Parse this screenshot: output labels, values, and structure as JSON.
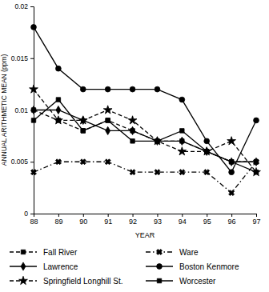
{
  "chart_data": {
    "type": "line",
    "x_label": "YEAR",
    "y_label": "ANNUAL ARITHMETIC MEAN (ppm)",
    "x": [
      88,
      89,
      90,
      91,
      92,
      93,
      94,
      95,
      96,
      97
    ],
    "xlim": [
      88,
      97
    ],
    "xticks": [
      88,
      89,
      90,
      91,
      92,
      93,
      94,
      95,
      96,
      97
    ],
    "ylim": [
      0,
      0.02
    ],
    "yticks": [
      0,
      0.005,
      0.01,
      0.015,
      0.02
    ],
    "grid": false,
    "legend": "bottom",
    "series": [
      {
        "name": "Fall River",
        "color": "#000000",
        "marker": "square",
        "line_style": "dashed",
        "values": [
          0.01,
          0.009,
          0.008,
          0.009,
          0.008,
          0.007,
          0.007,
          0.006,
          0.005,
          0.005
        ]
      },
      {
        "name": "Lawrence",
        "color": "#000000",
        "marker": "diamond",
        "line_style": "solid",
        "values": [
          0.01,
          0.01,
          0.009,
          0.008,
          0.008,
          0.007,
          0.007,
          0.006,
          0.005,
          0.005
        ]
      },
      {
        "name": "Springfield Longhill St.",
        "color": "#000000",
        "marker": "star",
        "line_style": "dashed",
        "values": [
          0.012,
          0.009,
          0.009,
          0.01,
          0.009,
          0.007,
          0.006,
          0.006,
          0.007,
          0.004
        ]
      },
      {
        "name": "Ware",
        "color": "#000000",
        "marker": "x",
        "line_style": "dashdot",
        "values": [
          0.004,
          0.005,
          0.005,
          0.005,
          0.004,
          0.004,
          0.004,
          0.004,
          0.002,
          0.005
        ]
      },
      {
        "name": "Boston Kenmore",
        "color": "#000000",
        "marker": "circle",
        "line_style": "solid",
        "values": [
          0.018,
          0.014,
          0.012,
          0.012,
          0.012,
          0.012,
          0.011,
          0.007,
          0.004,
          0.009
        ]
      },
      {
        "name": "Worcester",
        "color": "#000000",
        "marker": "square",
        "line_style": "solid",
        "values": [
          0.009,
          0.011,
          0.008,
          0.009,
          0.007,
          0.007,
          0.008,
          0.006,
          0.005,
          0.004
        ]
      }
    ]
  }
}
